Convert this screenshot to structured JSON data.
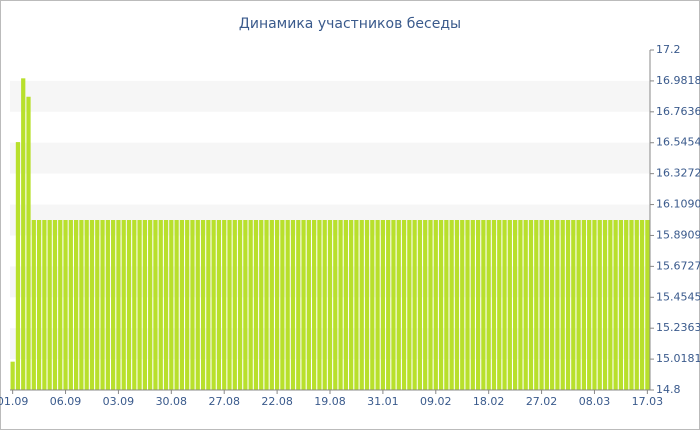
{
  "chart_data": {
    "type": "bar",
    "title": "Динамика участников беседы",
    "categories": [
      "01.09",
      null,
      null,
      null,
      null,
      null,
      null,
      null,
      null,
      null,
      "06.09",
      null,
      null,
      null,
      null,
      null,
      null,
      null,
      null,
      null,
      "03.09",
      null,
      null,
      null,
      null,
      null,
      null,
      null,
      null,
      null,
      "30.08",
      null,
      null,
      null,
      null,
      null,
      null,
      null,
      null,
      null,
      "27.08",
      null,
      null,
      null,
      null,
      null,
      null,
      null,
      null,
      null,
      "22.08",
      null,
      null,
      null,
      null,
      null,
      null,
      null,
      null,
      null,
      "19.08",
      null,
      null,
      null,
      null,
      null,
      null,
      null,
      null,
      null,
      "31.01",
      null,
      null,
      null,
      null,
      null,
      null,
      null,
      null,
      null,
      "09.02",
      null,
      null,
      null,
      null,
      null,
      null,
      null,
      null,
      null,
      "18.02",
      null,
      null,
      null,
      null,
      null,
      null,
      null,
      null,
      null,
      "27.02",
      null,
      null,
      null,
      null,
      null,
      null,
      null,
      null,
      null,
      "08.03",
      null,
      null,
      null,
      null,
      null,
      null,
      null,
      null,
      null,
      "17.03"
    ],
    "values": [
      15,
      16.55,
      17,
      16.87,
      16,
      16,
      16,
      16,
      16,
      16,
      16,
      16,
      16,
      16,
      16,
      16,
      16,
      16,
      16,
      16,
      16,
      16,
      16,
      16,
      16,
      16,
      16,
      16,
      16,
      16,
      16,
      16,
      16,
      16,
      16,
      16,
      16,
      16,
      16,
      16,
      16,
      16,
      16,
      16,
      16,
      16,
      16,
      16,
      16,
      16,
      16,
      16,
      16,
      16,
      16,
      16,
      16,
      16,
      16,
      16,
      16,
      16,
      16,
      16,
      16,
      16,
      16,
      16,
      16,
      16,
      16,
      16,
      16,
      16,
      16,
      16,
      16,
      16,
      16,
      16,
      16,
      16,
      16,
      16,
      16,
      16,
      16,
      16,
      16,
      16,
      16,
      16,
      16,
      16,
      16,
      16,
      16,
      16,
      16,
      16,
      16,
      16,
      16,
      16,
      16,
      16,
      16,
      16,
      16,
      16,
      16,
      16,
      16,
      16,
      16,
      16,
      16,
      16,
      16,
      16,
      16
    ],
    "color": "#b8e02c",
    "ylim": [
      14.8,
      17.2
    ],
    "yticks": [
      14.8,
      15.0181,
      15.2363,
      15.4545,
      15.6727,
      15.8909,
      {
        "value": 16.109,
        "label": "16.1090"
      },
      16.3272,
      16.5454,
      16.7636,
      16.9818,
      17.2
    ],
    "grid": true
  }
}
